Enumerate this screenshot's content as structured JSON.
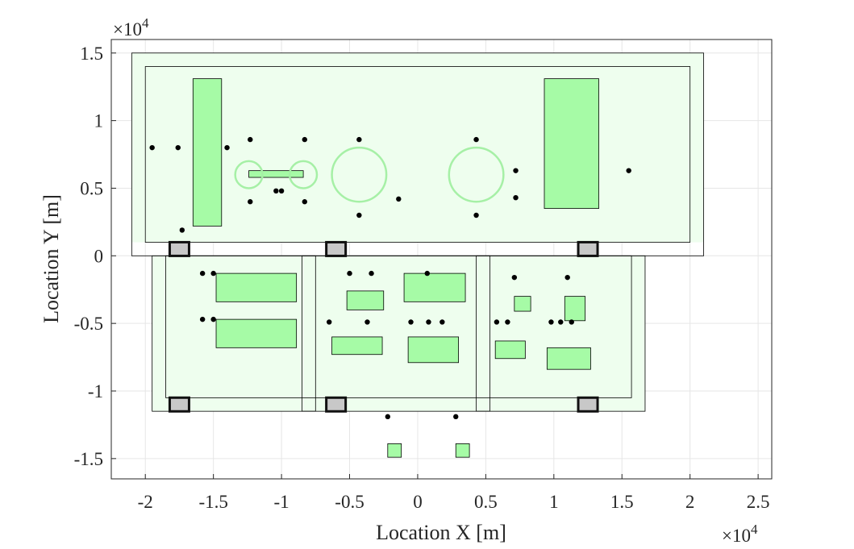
{
  "chart_data": {
    "type": "scatter",
    "title": "",
    "xlabel": "Location X [m]",
    "ylabel": "Location Y [m]",
    "x_exponent": "×10",
    "x_exponent_power": "4",
    "y_exponent": "×10",
    "y_exponent_power": "4",
    "xlim": [
      -22500,
      26000
    ],
    "ylim": [
      -16500,
      16000
    ],
    "x_ticks": [
      -20000,
      -15000,
      -10000,
      -5000,
      0,
      5000,
      10000,
      15000,
      20000,
      25000
    ],
    "x_tick_labels": [
      "-2",
      "-1.5",
      "-1",
      "-0.5",
      "0",
      "0.5",
      "1",
      "1.5",
      "2",
      "2.5"
    ],
    "y_ticks": [
      -15000,
      -10000,
      -5000,
      0,
      5000,
      10000,
      15000
    ],
    "y_tick_labels": [
      "-1.5",
      "-1",
      "-0.5",
      "0",
      "0.5",
      "1",
      "1.5"
    ],
    "grid": true,
    "colors": {
      "fill_green": "#a6fba6",
      "light_green": "#eefeee",
      "circle_green": "#a6f0a6",
      "gray": "#c8c8c8",
      "point": "#000000",
      "outline": "#000000",
      "grid": "#e6e6e6"
    },
    "structures": [
      {
        "kind": "frame",
        "x": [
          -21000,
          21000
        ],
        "y": [
          1000,
          15000
        ],
        "w": 1000
      },
      {
        "kind": "frame",
        "x": [
          -19500,
          16700
        ],
        "y": [
          -11500,
          0
        ],
        "w": 1000
      },
      {
        "kind": "frame",
        "x": [
          -8500,
          -7000
        ],
        "y": [
          -11500,
          0
        ],
        "w": 1000
      },
      {
        "kind": "frame",
        "x": [
          4300,
          5300
        ],
        "y": [
          -11500,
          0
        ],
        "w": 1000
      }
    ],
    "wall_outlines": [
      {
        "x": [
          -21000,
          21000
        ],
        "y": [
          0,
          15000
        ]
      },
      {
        "x": [
          -20000,
          20000
        ],
        "y": [
          1000,
          14000
        ]
      },
      {
        "x": [
          -19500,
          16700
        ],
        "y": [
          -11500,
          0
        ]
      },
      {
        "x": [
          -18500,
          15700
        ],
        "y": [
          -10500,
          0
        ]
      },
      {
        "x": [
          -8500,
          -7500
        ],
        "y": [
          -11500,
          0
        ]
      },
      {
        "x": [
          4300,
          5300
        ],
        "y": [
          -11500,
          0
        ]
      }
    ],
    "green_rects": [
      {
        "x": [
          -16500,
          -14400
        ],
        "y": [
          2200,
          13100
        ]
      },
      {
        "x": [
          9300,
          13300
        ],
        "y": [
          3500,
          13100
        ]
      },
      {
        "x": [
          -12400,
          -8400
        ],
        "y": [
          5800,
          6300
        ]
      },
      {
        "x": [
          -14800,
          -8900
        ],
        "y": [
          -3400,
          -1300
        ]
      },
      {
        "x": [
          -14800,
          -8900
        ],
        "y": [
          -6800,
          -4700
        ]
      },
      {
        "x": [
          -5200,
          -2500
        ],
        "y": [
          -4000,
          -2600
        ]
      },
      {
        "x": [
          -6300,
          -2600
        ],
        "y": [
          -7300,
          -6000
        ]
      },
      {
        "x": [
          -1000,
          3500
        ],
        "y": [
          -3400,
          -1300
        ]
      },
      {
        "x": [
          -700,
          3000
        ],
        "y": [
          -7900,
          -6000
        ]
      },
      {
        "x": [
          7100,
          8300
        ],
        "y": [
          -4100,
          -3000
        ]
      },
      {
        "x": [
          5700,
          7900
        ],
        "y": [
          -7600,
          -6300
        ]
      },
      {
        "x": [
          10800,
          12300
        ],
        "y": [
          -4800,
          -3000
        ]
      },
      {
        "x": [
          9500,
          12700
        ],
        "y": [
          -8400,
          -6800
        ]
      },
      {
        "x": [
          -2200,
          -1200
        ],
        "y": [
          -14900,
          -13900
        ]
      },
      {
        "x": [
          2800,
          3800
        ],
        "y": [
          -14900,
          -13900
        ]
      }
    ],
    "circles": [
      {
        "cx": -12400,
        "cy": 6000,
        "r": 1000
      },
      {
        "cx": -8400,
        "cy": 6000,
        "r": 1000
      },
      {
        "cx": -4300,
        "cy": 6000,
        "r": 2000
      },
      {
        "cx": 4300,
        "cy": 6000,
        "r": 2000
      }
    ],
    "gray_squares": [
      {
        "cx": -17500,
        "cy": 500
      },
      {
        "cx": -6000,
        "cy": 500
      },
      {
        "cx": 12500,
        "cy": 500
      },
      {
        "cx": -17500,
        "cy": -11000
      },
      {
        "cx": -6000,
        "cy": -11000
      },
      {
        "cx": 12500,
        "cy": -11000
      }
    ],
    "points": [
      [
        -19500,
        8000
      ],
      [
        -17600,
        8000
      ],
      [
        -14000,
        8000
      ],
      [
        -12300,
        8600
      ],
      [
        -8300,
        8600
      ],
      [
        -4300,
        8600
      ],
      [
        4300,
        8600
      ],
      [
        -12300,
        4000
      ],
      [
        -10400,
        4800
      ],
      [
        -10000,
        4800
      ],
      [
        -8300,
        4000
      ],
      [
        -4300,
        3000
      ],
      [
        -1400,
        4200
      ],
      [
        4300,
        3000
      ],
      [
        7200,
        6300
      ],
      [
        7200,
        4300
      ],
      [
        15500,
        6300
      ],
      [
        -17300,
        1900
      ],
      [
        -15800,
        -1300
      ],
      [
        -15000,
        -1300
      ],
      [
        -15800,
        -4700
      ],
      [
        -15000,
        -4700
      ],
      [
        -5000,
        -1300
      ],
      [
        -3400,
        -1300
      ],
      [
        700,
        -1300
      ],
      [
        -6500,
        -4900
      ],
      [
        -3700,
        -4900
      ],
      [
        -500,
        -4900
      ],
      [
        800,
        -4900
      ],
      [
        1800,
        -4900
      ],
      [
        7100,
        -1600
      ],
      [
        11000,
        -1600
      ],
      [
        5800,
        -4900
      ],
      [
        6600,
        -4900
      ],
      [
        9800,
        -4900
      ],
      [
        10500,
        -4900
      ],
      [
        11300,
        -4900
      ],
      [
        -2200,
        -11900
      ],
      [
        2800,
        -11900
      ]
    ]
  }
}
